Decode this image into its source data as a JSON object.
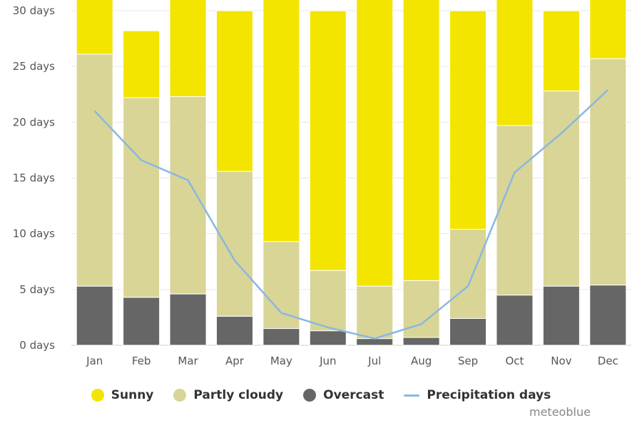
{
  "chart_data": {
    "type": "bar",
    "stacked": true,
    "categories": [
      "Jan",
      "Feb",
      "Mar",
      "Apr",
      "May",
      "Jun",
      "Jul",
      "Aug",
      "Sep",
      "Oct",
      "Nov",
      "Dec"
    ],
    "series": [
      {
        "name": "Overcast",
        "color": "#666666",
        "values": [
          5.3,
          4.3,
          4.6,
          2.6,
          1.5,
          1.3,
          0.6,
          0.7,
          2.4,
          4.5,
          5.3,
          5.4
        ]
      },
      {
        "name": "Partly cloudy",
        "color": "#d8d596",
        "values": [
          20.8,
          17.9,
          17.7,
          13.0,
          7.8,
          5.4,
          4.7,
          5.1,
          8.0,
          15.2,
          17.5,
          20.3
        ]
      },
      {
        "name": "Sunny",
        "color": "#f3e500",
        "values": [
          4.9,
          6.0,
          8.7,
          14.4,
          21.7,
          23.3,
          25.7,
          25.2,
          19.6,
          11.3,
          7.2,
          5.3
        ]
      }
    ],
    "line_series": {
      "name": "Precipitation days",
      "color": "#8bb7e0",
      "values": [
        21.0,
        16.6,
        14.8,
        7.6,
        2.9,
        1.6,
        0.6,
        1.9,
        5.3,
        15.5,
        19.0,
        22.9
      ]
    },
    "ylim": [
      0,
      30
    ],
    "yticks": [
      0,
      5,
      10,
      15,
      20,
      25,
      30
    ],
    "ytick_labels": [
      "0 days",
      "5 days",
      "10 days",
      "15 days",
      "20 days",
      "25 days",
      "30 days"
    ],
    "grid": true,
    "legend_position": "bottom"
  },
  "legend": {
    "items": [
      {
        "label": "Sunny",
        "color": "#f3e500"
      },
      {
        "label": "Partly cloudy",
        "color": "#d8d596"
      },
      {
        "label": "Overcast",
        "color": "#666666"
      },
      {
        "label": "Precipitation days",
        "color": "#8bb7e0"
      }
    ]
  },
  "credit": "meteoblue"
}
